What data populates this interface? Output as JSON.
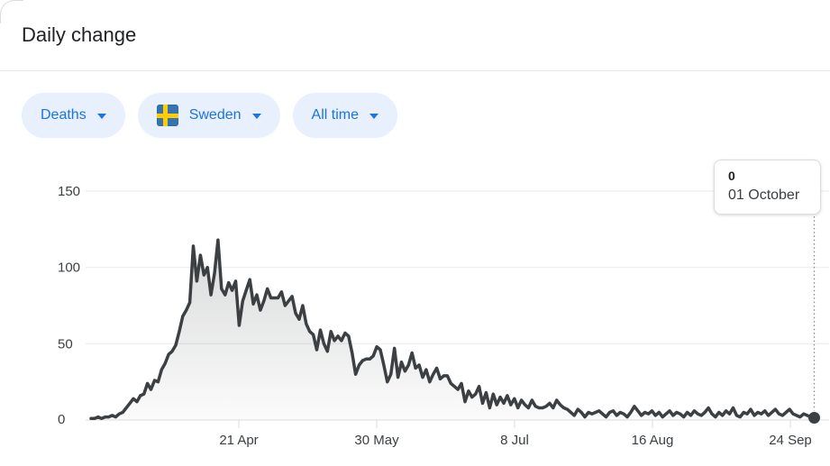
{
  "header": {
    "title": "Daily change"
  },
  "filters": {
    "metric": {
      "label": "Deaths"
    },
    "region": {
      "label": "Sweden",
      "flag": "sweden-flag"
    },
    "range": {
      "label": "All time"
    }
  },
  "tooltip": {
    "value": "0",
    "date": "01 October"
  },
  "colors": {
    "accent_blue": "#1a73e8",
    "chip_background": "#e8f0fe",
    "series_line": "#3c4043",
    "gridline": "#e8eaed",
    "axis_text": "#3c4043",
    "title_text": "#202124",
    "tooltip_border": "#dadce0",
    "flag_blue": "#3573b1",
    "flag_yellow": "#fecc00"
  },
  "chart_data": {
    "type": "area",
    "title": "Daily change",
    "series_name": "Deaths daily change, Sweden, all time",
    "ylim": [
      0,
      150
    ],
    "grid": true,
    "y_tick_labels": [
      "150",
      "100",
      "50",
      "0"
    ],
    "y_tick_values": [
      150,
      100,
      50,
      0
    ],
    "x_tick_labels": [
      "21 Apr",
      "30 May",
      "8 Jul",
      "16 Aug",
      "24 Sep"
    ],
    "x_tick_day_index": [
      42,
      81,
      120,
      159,
      198
    ],
    "highlight": {
      "day_index": 205,
      "value": 0,
      "date_label": "01 October"
    },
    "values": [
      1,
      1,
      2,
      1,
      2,
      2,
      3,
      2,
      4,
      5,
      8,
      11,
      14,
      12,
      16,
      17,
      24,
      20,
      26,
      25,
      33,
      37,
      43,
      45,
      49,
      58,
      68,
      72,
      77,
      114,
      91,
      108,
      95,
      100,
      82,
      96,
      118,
      86,
      82,
      90,
      85,
      91,
      62,
      78,
      85,
      92,
      76,
      82,
      72,
      78,
      86,
      80,
      80,
      80,
      84,
      75,
      78,
      81,
      70,
      66,
      75,
      63,
      58,
      56,
      46,
      59,
      50,
      45,
      58,
      52,
      55,
      52,
      57,
      55,
      44,
      30,
      36,
      39,
      40,
      40,
      42,
      48,
      46,
      36,
      25,
      30,
      47,
      28,
      38,
      32,
      36,
      44,
      34,
      36,
      28,
      33,
      25,
      30,
      34,
      27,
      29,
      29,
      24,
      22,
      20,
      24,
      12,
      19,
      15,
      17,
      22,
      11,
      18,
      8,
      17,
      10,
      15,
      11,
      16,
      10,
      14,
      8,
      13,
      10,
      8,
      13,
      9,
      8,
      8,
      9,
      11,
      8,
      13,
      10,
      8,
      7,
      5,
      3,
      7,
      5,
      2,
      5,
      4,
      5,
      6,
      4,
      2,
      5,
      6,
      3,
      5,
      4,
      2,
      5,
      9,
      6,
      3,
      5,
      4,
      6,
      3,
      5,
      2,
      4,
      6,
      3,
      5,
      4,
      2,
      5,
      3,
      6,
      4,
      3,
      5,
      8,
      4,
      2,
      5,
      3,
      6,
      4,
      8,
      3,
      2,
      5,
      4,
      7,
      3,
      5,
      4,
      6,
      3,
      5,
      7,
      4,
      3,
      5,
      7,
      4,
      3,
      2,
      4,
      3,
      2,
      0
    ]
  }
}
